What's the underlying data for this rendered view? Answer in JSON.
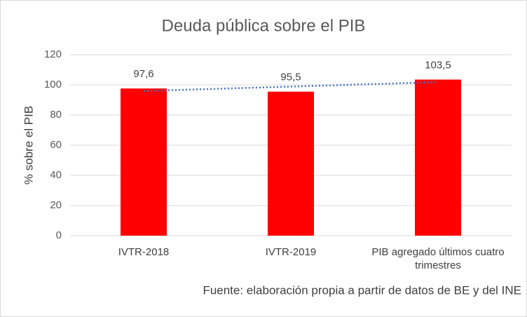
{
  "chart_data": {
    "type": "bar",
    "title": "Deuda pública sobre el PIB",
    "y_label": "% sobre el PIB",
    "categories": [
      "IVTR-2018",
      "IVTR-2019",
      "PIB agregado últimos cuatro trimestres"
    ],
    "values": [
      97.6,
      95.5,
      103.5
    ],
    "value_labels": [
      "97,6",
      "95,5",
      "103,5"
    ],
    "color": "#ff0000",
    "ylim": [
      0,
      120
    ],
    "yticks": [
      0,
      20,
      40,
      60,
      80,
      100,
      120
    ],
    "grid": true,
    "trendline": {
      "kind": "linear",
      "color": "#4472c4"
    },
    "source": "Fuente: elaboración propia a partir de datos de BE y del INE"
  }
}
